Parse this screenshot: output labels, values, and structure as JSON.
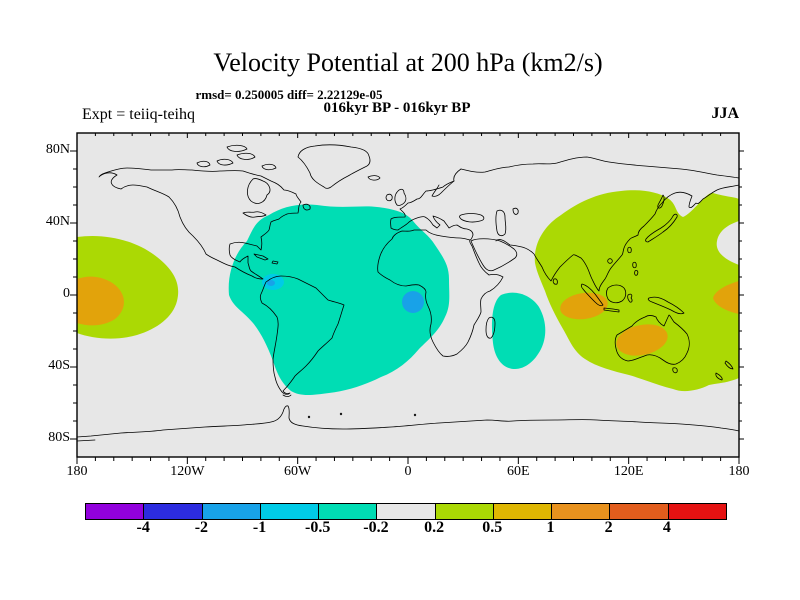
{
  "header": {
    "title": "Velocity Potential at 200 hPa (km2/s)",
    "stats_line": "rmsd= 0.250005 diff= 2.22129e-05",
    "run_line": "016kyr BP - 016kyr BP",
    "experiment_label": "Expt = teiiq-teihq",
    "season_label": "JJA"
  },
  "palette": {
    "map_background": "#E7E7E7",
    "coastline": "#000000",
    "violet": "#9201DD",
    "blue": "#2C2CE0",
    "lightblue": "#18A2E8",
    "cyan": "#00CBE7",
    "teal": "#00DDB4",
    "gray": "#E7E7E7",
    "yellowgreen": "#ABD904",
    "gold": "#DFB702",
    "map_orange": "#E2A30B",
    "orange": "#E8921E",
    "darkorange": "#E25D1D",
    "red": "#E51212"
  },
  "map": {
    "lat_ticks": [
      {
        "label": "80N",
        "deg": 80
      },
      {
        "label": "40N",
        "deg": 40
      },
      {
        "label": "0",
        "deg": 0
      },
      {
        "label": "40S",
        "deg": -40
      },
      {
        "label": "80S",
        "deg": -80
      }
    ],
    "lon_ticks": [
      {
        "label": "180",
        "deg": -180
      },
      {
        "label": "120W",
        "deg": -120
      },
      {
        "label": "60W",
        "deg": -60
      },
      {
        "label": "0",
        "deg": 0
      },
      {
        "label": "60E",
        "deg": 60
      },
      {
        "label": "120E",
        "deg": 120
      },
      {
        "label": "180",
        "deg": 180
      }
    ]
  },
  "colorbar": {
    "segments": [
      "#9201DD",
      "#2C2CE0",
      "#18A2E8",
      "#00CBE7",
      "#00DDB4",
      "#E7E7E7",
      "#ABD904",
      "#DFB702",
      "#E8921E",
      "#E25D1D",
      "#E51212"
    ],
    "boundary_labels": [
      "-4",
      "-2",
      "-1",
      "-0.5",
      "-0.2",
      "0.2",
      "0.5",
      "1",
      "2",
      "4"
    ]
  },
  "chart_data": {
    "type": "heatmap",
    "subtype": "filled-contour-world-map",
    "title": "Velocity Potential at 200 hPa (km2/s)",
    "annotations": [
      "rmsd= 0.250005 diff= 2.22129e-05",
      "016kyr BP - 016kyr BP",
      "Expt = teiiq-teihq",
      "JJA"
    ],
    "units": "km2/s",
    "projection": "equirectangular",
    "lon_range": [
      -180,
      180
    ],
    "lat_range": [
      -90,
      90
    ],
    "contour_levels": [
      -4,
      -2,
      -1,
      -0.5,
      -0.2,
      0.2,
      0.5,
      1,
      2,
      4
    ],
    "legend_position": "bottom",
    "regions": [
      {
        "band": "-0.5 to -0.2",
        "color": "teal",
        "where": "eastern North America, North/South Atlantic, northern South America, west Africa, extending to ~55S off southern South America"
      },
      {
        "band": "-0.5 to -0.2",
        "color": "teal",
        "where": "southwest Indian Ocean near Madagascar (~45-75E, 0-40S)"
      },
      {
        "band": "-1 to -0.5",
        "color": "cyan",
        "where": "small spot near Panama (~75W, 7N)"
      },
      {
        "band": "-2 to -1",
        "color": "lightblue",
        "where": "small spot in Gulf of Guinea (~3E, 3S)"
      },
      {
        "band": "0.2 to 0.5",
        "color": "yellowgreen",
        "where": "large Asia-Pacific region: India to 180, East Asia, Maritime Continent, Australia, New Zealand (~50N-50S)"
      },
      {
        "band": "0.2 to 0.5",
        "color": "yellowgreen",
        "where": "eastern Pacific lobe wrapping the 180 meridian (180 to ~150W, 30N-25S)"
      },
      {
        "band": "0.5 to 1",
        "color": "map_orange",
        "where": "eastern Indian Ocean west of Sumatra (~95E, 6S)"
      },
      {
        "band": "0.5 to 1",
        "color": "map_orange",
        "where": "central Australia (~125E, 26S)"
      },
      {
        "band": "0.5 to 1",
        "color": "map_orange",
        "where": "at 180 meridian near equator (both map edges)"
      }
    ]
  }
}
